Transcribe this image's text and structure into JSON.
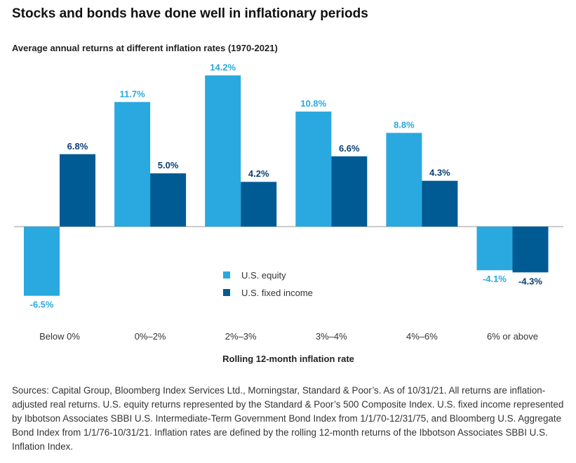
{
  "header": {
    "title": "Stocks and bonds have done well in inflationary periods",
    "subtitle": "Average annual returns at different inflation rates (1970-2021)"
  },
  "colors": {
    "equity": "#29a9df",
    "fixed_income": "#005b94",
    "axis": "#9a9a9a",
    "value_equity": "#29a9df",
    "value_fixed": "#0b3e75"
  },
  "chart_data": {
    "type": "bar",
    "categories": [
      "Below 0%",
      "0%–2%",
      "2%–3%",
      "3%–4%",
      "4%–6%",
      "6% or above"
    ],
    "series": [
      {
        "name": "U.S. equity",
        "values": [
          -6.5,
          11.7,
          14.2,
          10.8,
          8.8,
          -4.1
        ]
      },
      {
        "name": "U.S. fixed income",
        "values": [
          6.8,
          5.0,
          4.2,
          6.6,
          4.3,
          -4.3
        ]
      }
    ],
    "value_labels": [
      [
        "-6.5%",
        "11.7%",
        "14.2%",
        "10.8%",
        "8.8%",
        "-4.1%"
      ],
      [
        "6.8%",
        "5.0%",
        "4.2%",
        "6.6%",
        "4.3%",
        "-4.3%"
      ]
    ],
    "xlabel": "Rolling 12-month inflation rate",
    "ylabel": "",
    "grid": false,
    "legend_position": "center"
  },
  "footer": {
    "sources": "Sources: Capital Group, Bloomberg Index Services Ltd., Morningstar, Standard & Poor’s. As of 10/31/21. All returns are inflation-adjusted real returns. U.S. equity returns represented by the Standard & Poor’s 500 Composite Index. U.S. fixed income represented by Ibbotson Associates SBBI U.S. Intermediate-Term Government Bond Index from 1/1/70-12/31/75, and Bloomberg U.S. Aggregate Bond Index from 1/1/76-10/31/21. Inflation rates are defined by the rolling 12-month returns of the Ibbotson Associates SBBI U.S. Inflation Index."
  }
}
